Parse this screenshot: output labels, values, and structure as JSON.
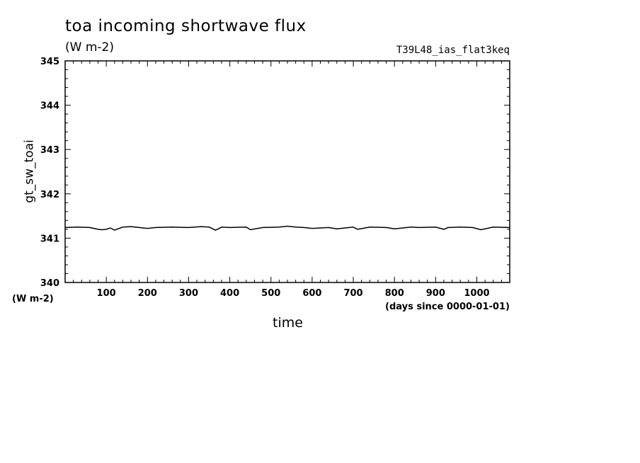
{
  "title": "toa incoming shortwave flux",
  "units_top": "(W m-2)",
  "run_label": "T39L48_ias_flat3keq",
  "chart_data": {
    "type": "line",
    "ylabel": "gt_sw_toai",
    "yunits": "(W m-2)",
    "xlabel": "time",
    "xunits": "(days since 0000-01-01)",
    "xlim": [
      0,
      1080
    ],
    "ylim": [
      340,
      345
    ],
    "xticks": [
      100,
      200,
      300,
      400,
      500,
      600,
      700,
      800,
      900,
      1000
    ],
    "yticks": [
      340,
      341,
      342,
      343,
      344,
      345
    ],
    "series": [
      {
        "x": [
          0,
          30,
          60,
          80,
          90,
          100,
          110,
          120,
          140,
          160,
          180,
          200,
          220,
          260,
          300,
          330,
          350,
          365,
          370,
          380,
          400,
          440,
          450,
          480,
          520,
          540,
          560,
          580,
          600,
          640,
          660,
          700,
          710,
          740,
          780,
          800,
          840,
          860,
          900,
          920,
          930,
          960,
          990,
          1010,
          1040,
          1080
        ],
        "y": [
          341.24,
          341.25,
          341.24,
          341.2,
          341.19,
          341.2,
          341.23,
          341.18,
          341.25,
          341.26,
          341.24,
          341.22,
          341.24,
          341.25,
          341.24,
          341.26,
          341.25,
          341.18,
          341.2,
          341.25,
          341.24,
          341.25,
          341.19,
          341.24,
          341.25,
          341.27,
          341.25,
          341.24,
          341.22,
          341.24,
          341.21,
          341.25,
          341.2,
          341.25,
          341.24,
          341.21,
          341.25,
          341.24,
          341.25,
          341.2,
          341.24,
          341.25,
          341.24,
          341.19,
          341.25,
          341.24
        ]
      }
    ]
  }
}
